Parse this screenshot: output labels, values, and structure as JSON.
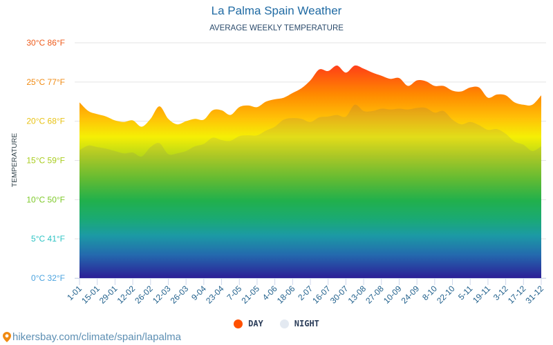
{
  "chart_data": {
    "type": "area",
    "title": "La Palma Spain Weather",
    "subtitle": "AVERAGE WEEKLY TEMPERATURE",
    "ylabel": "TEMPERATURE",
    "xlabel": "",
    "ylim": [
      0,
      30
    ],
    "grid": true,
    "legend_position": "bottom-center",
    "y_ticks": [
      {
        "value": 0,
        "label": "0°C 32°F",
        "color": "#4aa3df"
      },
      {
        "value": 5,
        "label": "5°C 41°F",
        "color": "#2ec4c4"
      },
      {
        "value": 10,
        "label": "10°C 50°F",
        "color": "#7dc928"
      },
      {
        "value": 15,
        "label": "15°C 59°F",
        "color": "#a8cc1c"
      },
      {
        "value": 20,
        "label": "20°C 68°F",
        "color": "#e8c214"
      },
      {
        "value": 25,
        "label": "25°C 77°F",
        "color": "#f08a12"
      },
      {
        "value": 30,
        "label": "30°C 86°F",
        "color": "#ee5a1a"
      }
    ],
    "x_tick_labels": [
      "1-01",
      "15-01",
      "29-01",
      "12-02",
      "26-02",
      "12-03",
      "26-03",
      "9-04",
      "23-04",
      "7-05",
      "21-05",
      "4-06",
      "18-06",
      "2-07",
      "16-07",
      "30-07",
      "13-08",
      "27-08",
      "10-09",
      "24-09",
      "8-10",
      "22-10",
      "5-11",
      "19-11",
      "3-12",
      "17-12",
      "31-12"
    ],
    "series": [
      {
        "name": "DAY",
        "color": "#ff5000",
        "values": [
          22.4,
          21.3,
          20.9,
          20.6,
          20.1,
          19.9,
          20.1,
          19.3,
          20.3,
          21.9,
          20.3,
          19.6,
          20.0,
          20.3,
          20.2,
          21.4,
          21.4,
          20.8,
          21.8,
          22.0,
          21.8,
          22.5,
          22.8,
          23.0,
          23.6,
          24.2,
          25.2,
          26.6,
          26.4,
          27.1,
          26.2,
          27.1,
          26.7,
          26.2,
          25.8,
          25.4,
          25.5,
          24.5,
          25.2,
          25.1,
          24.5,
          24.5,
          23.9,
          23.8,
          24.3,
          24.3,
          23.0,
          23.4,
          23.3,
          22.4,
          22.1,
          22.1,
          23.3
        ]
      },
      {
        "name": "NIGHT",
        "color": "#e3e9f1",
        "values": [
          16.3,
          16.9,
          16.7,
          16.5,
          16.2,
          15.9,
          16.0,
          15.5,
          16.7,
          17.2,
          15.8,
          15.9,
          16.2,
          16.8,
          17.1,
          17.9,
          17.6,
          17.5,
          18.1,
          18.2,
          18.2,
          18.8,
          19.3,
          20.2,
          20.4,
          20.3,
          19.9,
          20.5,
          20.6,
          20.8,
          20.6,
          22.1,
          21.3,
          21.3,
          21.6,
          21.5,
          21.6,
          21.5,
          21.7,
          21.7,
          21.1,
          21.3,
          20.2,
          19.6,
          19.9,
          19.5,
          18.9,
          19.0,
          18.4,
          17.4,
          17.0,
          16.2,
          16.8
        ]
      }
    ]
  },
  "legend": {
    "day_label": "DAY",
    "night_label": "NIGHT"
  },
  "footer": {
    "source_text": "hikersbay.com/climate/spain/lapalma"
  }
}
